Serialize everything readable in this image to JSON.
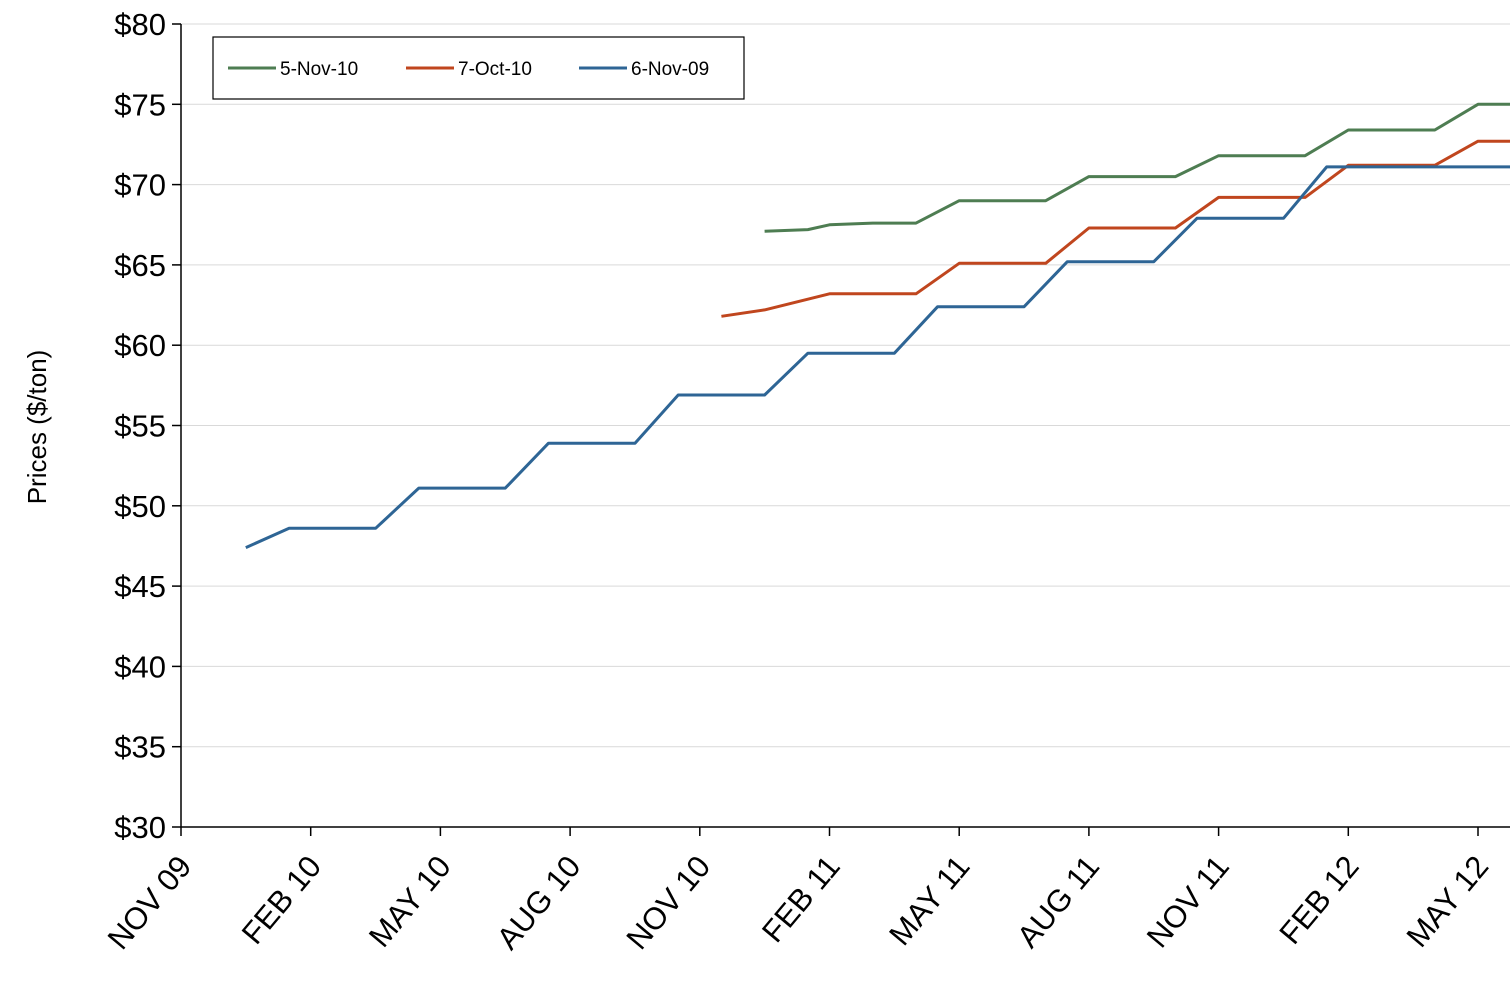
{
  "chart_data": {
    "type": "line",
    "title": "",
    "xlabel": "",
    "ylabel": "Prices  ($/ton)",
    "ylim": [
      30,
      80
    ],
    "yticks": [
      30,
      35,
      40,
      45,
      50,
      55,
      60,
      65,
      70,
      75,
      80
    ],
    "ytick_labels": [
      "$30",
      "$35",
      "$40",
      "$45",
      "$50",
      "$55",
      "$60",
      "$65",
      "$70",
      "$75",
      "$80"
    ],
    "x_categories": [
      "NOV 09",
      "FEB 10",
      "MAY 10",
      "AUG 10",
      "NOV 10",
      "FEB 11",
      "MAY 11",
      "AUG 11",
      "NOV 11",
      "FEB 12",
      "MAY 12"
    ],
    "x_months_from_nov09": [
      0,
      3,
      6,
      9,
      12,
      15,
      18,
      21,
      24,
      27,
      30
    ],
    "xlim_months": [
      0,
      30.8
    ],
    "grid": true,
    "legend_position": "top-left",
    "series": [
      {
        "name": "5-Nov-10",
        "color": "#4E7D52",
        "points": [
          [
            13.5,
            67.1
          ],
          [
            14.5,
            67.2
          ],
          [
            15.0,
            67.5
          ],
          [
            16.0,
            67.6
          ],
          [
            17.0,
            67.6
          ],
          [
            18.0,
            69.0
          ],
          [
            19.0,
            69.0
          ],
          [
            20.0,
            69.0
          ],
          [
            21.0,
            70.5
          ],
          [
            22.0,
            70.5
          ],
          [
            23.0,
            70.5
          ],
          [
            24.0,
            71.8
          ],
          [
            25.0,
            71.8
          ],
          [
            26.0,
            71.8
          ],
          [
            27.0,
            73.4
          ],
          [
            28.0,
            73.4
          ],
          [
            29.0,
            73.4
          ],
          [
            30.0,
            75.0
          ],
          [
            30.8,
            75.0
          ]
        ]
      },
      {
        "name": "7-Oct-10",
        "color": "#C0461E",
        "points": [
          [
            12.5,
            61.8
          ],
          [
            13.5,
            62.2
          ],
          [
            15.0,
            63.2
          ],
          [
            16.0,
            63.2
          ],
          [
            17.0,
            63.2
          ],
          [
            18.0,
            65.1
          ],
          [
            19.0,
            65.1
          ],
          [
            20.0,
            65.1
          ],
          [
            21.0,
            67.3
          ],
          [
            22.0,
            67.3
          ],
          [
            23.0,
            67.3
          ],
          [
            24.0,
            69.2
          ],
          [
            25.0,
            69.2
          ],
          [
            26.0,
            69.2
          ],
          [
            27.0,
            71.2
          ],
          [
            28.0,
            71.2
          ],
          [
            29.0,
            71.2
          ],
          [
            30.0,
            72.7
          ],
          [
            30.8,
            72.7
          ]
        ]
      },
      {
        "name": "6-Nov-09",
        "color": "#2E6595",
        "points": [
          [
            1.5,
            47.4
          ],
          [
            2.5,
            48.6
          ],
          [
            3.5,
            48.6
          ],
          [
            4.5,
            48.6
          ],
          [
            5.5,
            51.1
          ],
          [
            6.5,
            51.1
          ],
          [
            7.5,
            51.1
          ],
          [
            8.5,
            53.9
          ],
          [
            9.5,
            53.9
          ],
          [
            10.5,
            53.9
          ],
          [
            11.5,
            56.9
          ],
          [
            12.5,
            56.9
          ],
          [
            13.5,
            56.9
          ],
          [
            14.5,
            59.5
          ],
          [
            15.5,
            59.5
          ],
          [
            16.5,
            59.5
          ],
          [
            17.5,
            62.4
          ],
          [
            18.5,
            62.4
          ],
          [
            19.5,
            62.4
          ],
          [
            20.5,
            65.2
          ],
          [
            21.5,
            65.2
          ],
          [
            22.5,
            65.2
          ],
          [
            23.5,
            67.9
          ],
          [
            24.5,
            67.9
          ],
          [
            25.5,
            67.9
          ],
          [
            26.5,
            71.1
          ],
          [
            27.5,
            71.1
          ],
          [
            28.5,
            71.1
          ],
          [
            29.5,
            71.1
          ],
          [
            30.8,
            71.1
          ]
        ]
      }
    ]
  }
}
